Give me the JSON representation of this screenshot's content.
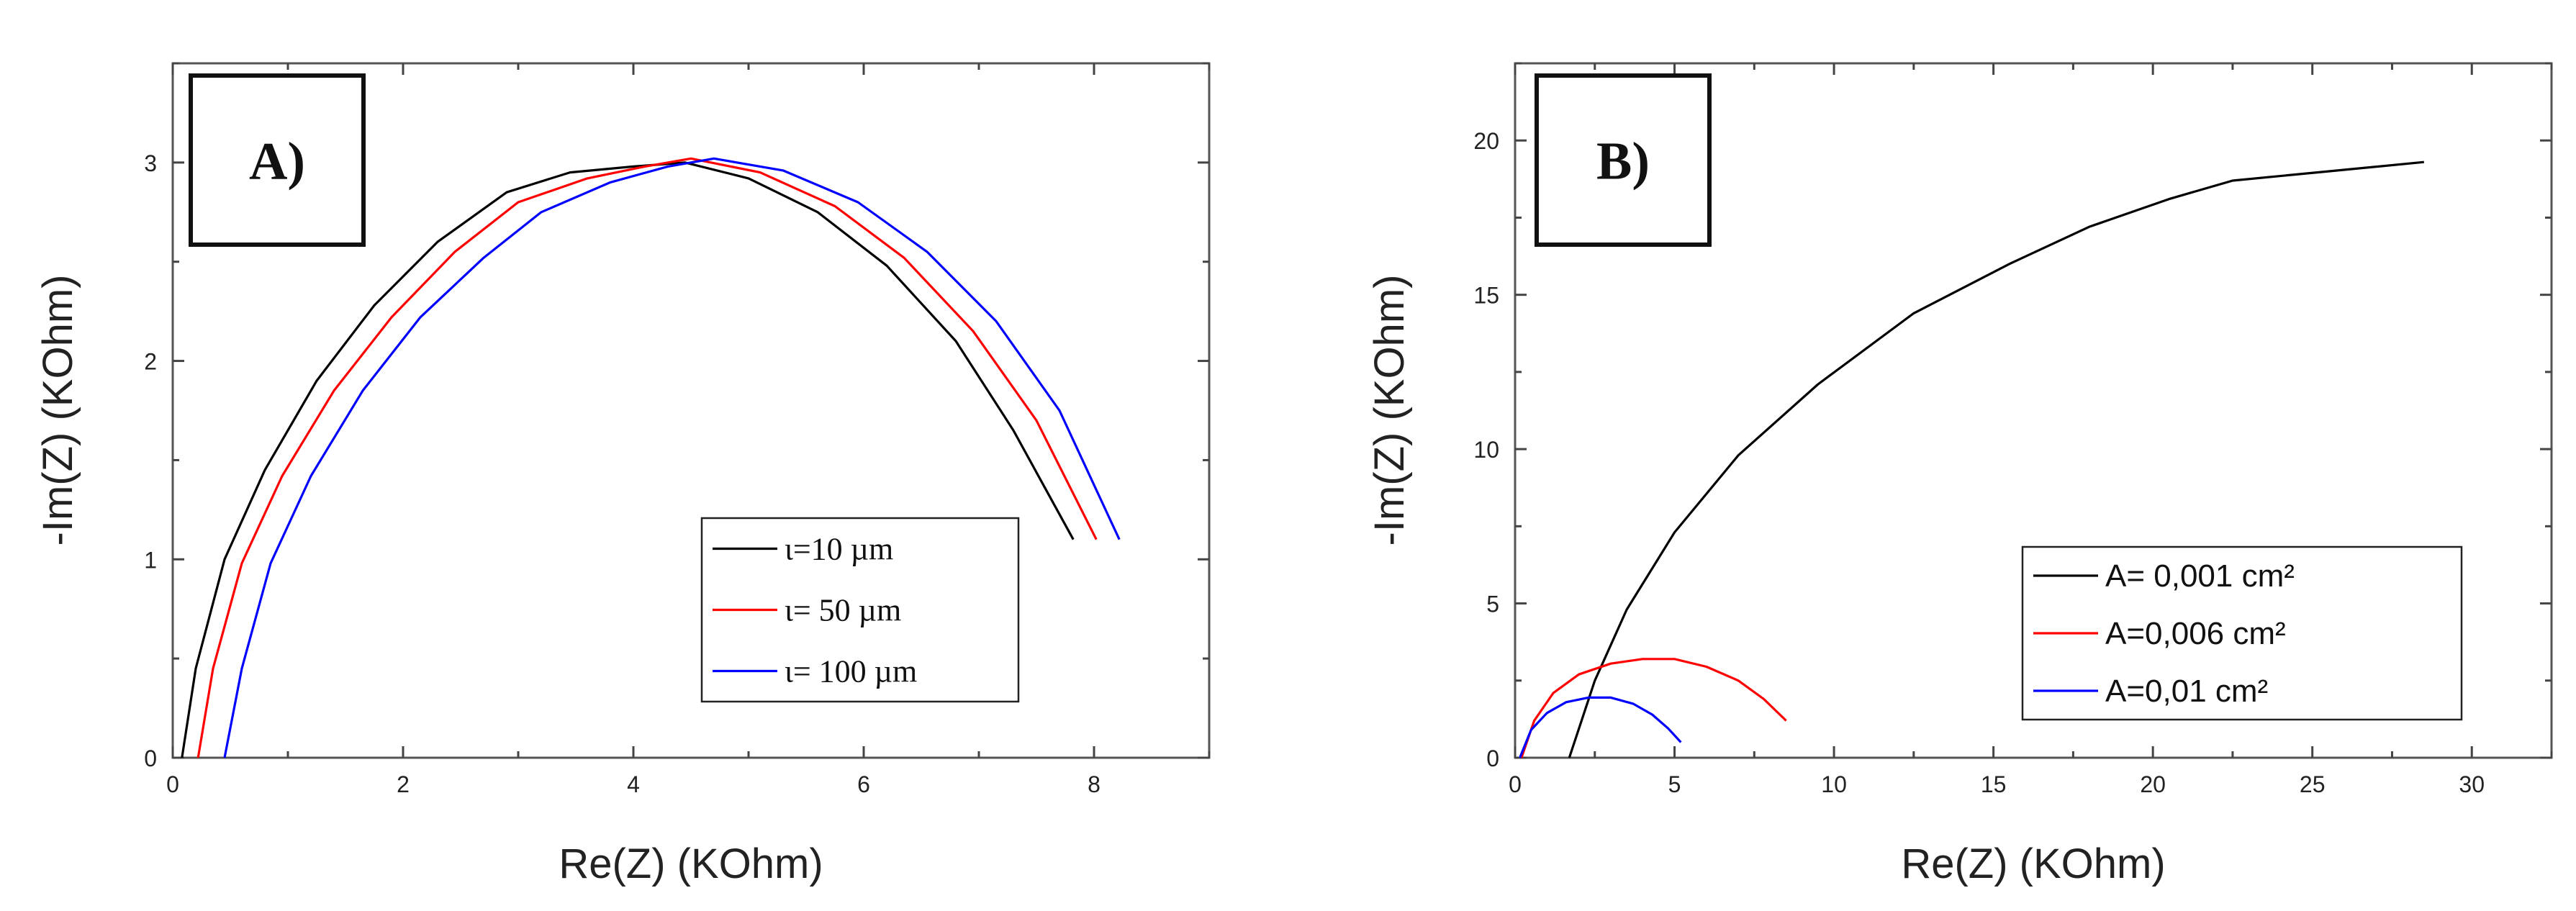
{
  "chart_data": [
    {
      "panel_label": "A)",
      "type": "line",
      "xlabel": "Re(Z) (KOhm)",
      "ylabel": "-Im(Z) (KOhm)",
      "xlim": [
        0,
        9
      ],
      "ylim": [
        0,
        3.5
      ],
      "xticks": [
        0,
        2,
        4,
        6,
        8
      ],
      "yticks": [
        0,
        1,
        2,
        3
      ],
      "xtick_labels": [
        "0",
        "2",
        "4",
        "6",
        "8"
      ],
      "ytick_labels": [
        "0",
        "1",
        "2",
        "3"
      ],
      "legend_position": "bottom-right",
      "series": [
        {
          "name": "ι=10 µm",
          "color": "#000000",
          "x": [
            0.08,
            0.2,
            0.45,
            0.8,
            1.25,
            1.75,
            2.3,
            2.9,
            3.45,
            4.0,
            4.45,
            5.0,
            5.6,
            6.2,
            6.8,
            7.3,
            7.82
          ],
          "y": [
            0.0,
            0.45,
            1.0,
            1.45,
            1.9,
            2.28,
            2.6,
            2.85,
            2.95,
            2.98,
            3.0,
            2.92,
            2.75,
            2.48,
            2.1,
            1.65,
            1.1
          ]
        },
        {
          "name": "ι= 50 µm",
          "color": "#ff0000",
          "x": [
            0.22,
            0.35,
            0.6,
            0.95,
            1.4,
            1.9,
            2.45,
            3.0,
            3.6,
            4.1,
            4.5,
            5.1,
            5.75,
            6.35,
            6.95,
            7.5,
            8.02
          ],
          "y": [
            0.0,
            0.45,
            0.98,
            1.42,
            1.85,
            2.22,
            2.55,
            2.8,
            2.92,
            2.98,
            3.02,
            2.95,
            2.78,
            2.52,
            2.15,
            1.7,
            1.1
          ]
        },
        {
          "name": "ι= 100 µm",
          "color": "#0000ff",
          "x": [
            0.45,
            0.6,
            0.85,
            1.2,
            1.65,
            2.15,
            2.7,
            3.2,
            3.8,
            4.3,
            4.7,
            5.3,
            5.95,
            6.55,
            7.15,
            7.7,
            8.22
          ],
          "y": [
            0.0,
            0.45,
            0.98,
            1.42,
            1.85,
            2.22,
            2.52,
            2.75,
            2.9,
            2.98,
            3.02,
            2.96,
            2.8,
            2.55,
            2.2,
            1.75,
            1.1
          ]
        }
      ]
    },
    {
      "panel_label": "B)",
      "type": "line",
      "xlabel": "Re(Z) (KOhm)",
      "ylabel": "-Im(Z) (KOhm)",
      "xlim": [
        0,
        32.5
      ],
      "ylim": [
        0,
        22.5
      ],
      "xticks": [
        0,
        5,
        10,
        15,
        20,
        25,
        30
      ],
      "yticks": [
        0,
        5,
        10,
        15,
        20
      ],
      "xtick_labels": [
        "0",
        "5",
        "10",
        "15",
        "20",
        "25",
        "30"
      ],
      "ytick_labels": [
        "0",
        "5",
        "10",
        "15",
        "20"
      ],
      "legend_position": "bottom-right",
      "series": [
        {
          "name": "A= 0,001 cm²",
          "color": "#000000",
          "x": [
            1.7,
            2.5,
            3.5,
            5.0,
            7.0,
            9.5,
            12.5,
            15.5,
            18.0,
            20.5,
            22.5,
            25.5,
            28.5
          ],
          "y": [
            0.0,
            2.5,
            4.8,
            7.3,
            9.8,
            12.1,
            14.4,
            16.0,
            17.2,
            18.1,
            18.7,
            19.0,
            19.3
          ]
        },
        {
          "name": "A=0,006 cm²",
          "color": "#ff0000",
          "x": [
            0.2,
            0.6,
            1.2,
            2.0,
            3.0,
            4.0,
            5.0,
            6.0,
            7.0,
            7.8,
            8.5
          ],
          "y": [
            0.0,
            1.2,
            2.1,
            2.7,
            3.05,
            3.2,
            3.2,
            2.95,
            2.5,
            1.9,
            1.2
          ]
        },
        {
          "name": "A=0,01 cm²",
          "color": "#0000ff",
          "x": [
            0.15,
            0.5,
            1.0,
            1.6,
            2.3,
            3.0,
            3.7,
            4.3,
            4.8,
            5.2
          ],
          "y": [
            0.0,
            0.9,
            1.45,
            1.8,
            1.95,
            1.95,
            1.75,
            1.4,
            0.95,
            0.5
          ]
        }
      ]
    }
  ]
}
